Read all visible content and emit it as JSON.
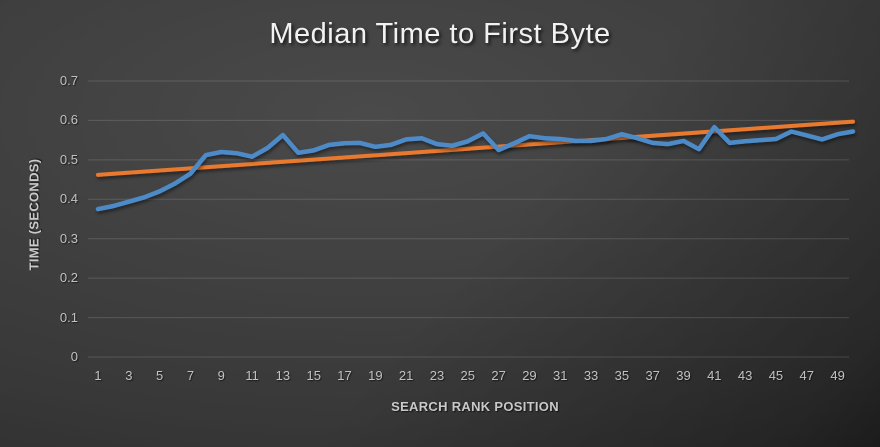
{
  "chart_data": {
    "type": "line",
    "title": "Median Time to First Byte",
    "xlabel": "SEARCH RANK POSITION",
    "ylabel": "TIME (SECONDS)",
    "x_range": [
      1,
      50
    ],
    "values": [
      0.375,
      0.383,
      0.394,
      0.405,
      0.42,
      0.44,
      0.465,
      0.512,
      0.52,
      0.517,
      0.508,
      0.53,
      0.563,
      0.518,
      0.524,
      0.538,
      0.542,
      0.543,
      0.533,
      0.538,
      0.552,
      0.555,
      0.54,
      0.536,
      0.547,
      0.567,
      0.525,
      0.542,
      0.56,
      0.555,
      0.553,
      0.548,
      0.548,
      0.553,
      0.565,
      0.555,
      0.543,
      0.54,
      0.548,
      0.527,
      0.583,
      0.543,
      0.547,
      0.55,
      0.553,
      0.572,
      0.562,
      0.552,
      0.565,
      0.572
    ],
    "trendline": {
      "y_start": 0.462,
      "y_end": 0.597
    },
    "ylim": [
      0,
      0.7
    ],
    "ytick_labels": [
      "0",
      "0.1",
      "0.2",
      "0.3",
      "0.4",
      "0.5",
      "0.6",
      "0.7"
    ],
    "xtick_labels": [
      "1",
      "3",
      "5",
      "7",
      "9",
      "11",
      "13",
      "15",
      "17",
      "19",
      "21",
      "23",
      "25",
      "27",
      "29",
      "31",
      "33",
      "35",
      "37",
      "39",
      "41",
      "43",
      "45",
      "47",
      "49"
    ],
    "grid": true,
    "legend_position": "none"
  },
  "colors": {
    "series_blue": "#4e8bc8",
    "trend_orange": "#e8792f",
    "gridline": "rgba(255,255,255,0.14)",
    "title_text": "#f2f2f2",
    "tick_text": "#c2c2c2",
    "axis_title_text": "#c9c9c9",
    "background_center": "#4a4a4a",
    "background_edge": "#242424"
  }
}
